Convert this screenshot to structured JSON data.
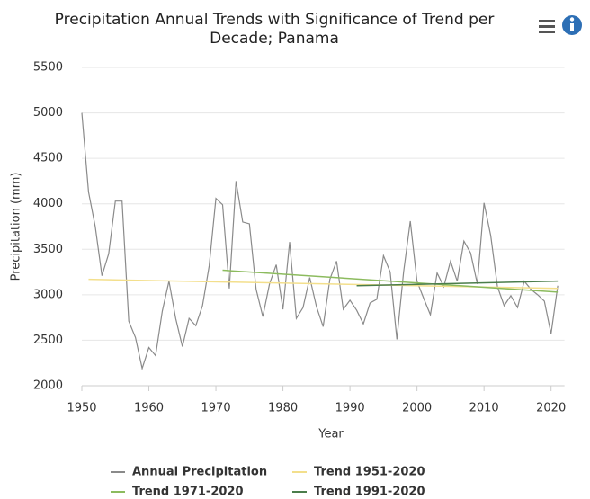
{
  "chart_data": {
    "type": "line",
    "title": "Precipitation Annual Trends with Significance of Trend per",
    "subtitle": "Decade; Panama",
    "xlabel": "Year",
    "ylabel": "Precipitation (mm)",
    "xlim": [
      1950,
      2022
    ],
    "ylim": [
      2000,
      5500
    ],
    "xticks": [
      1950,
      1960,
      1970,
      1980,
      1990,
      2000,
      2010,
      2020
    ],
    "yticks": [
      2000,
      2500,
      3000,
      3500,
      4000,
      4500,
      5000,
      5500
    ],
    "grid": true,
    "legend": "bottom",
    "series": [
      {
        "name": "Annual Precipitation",
        "color": "#8a8a8a",
        "x": [
          1950,
          1951,
          1952,
          1953,
          1954,
          1955,
          1956,
          1957,
          1958,
          1959,
          1960,
          1961,
          1962,
          1963,
          1964,
          1965,
          1966,
          1967,
          1968,
          1969,
          1970,
          1971,
          1972,
          1973,
          1974,
          1975,
          1976,
          1977,
          1978,
          1979,
          1980,
          1981,
          1982,
          1983,
          1984,
          1985,
          1986,
          1987,
          1988,
          1989,
          1990,
          1991,
          1992,
          1993,
          1994,
          1995,
          1996,
          1997,
          1998,
          1999,
          2000,
          2001,
          2002,
          2003,
          2004,
          2005,
          2006,
          2007,
          2008,
          2009,
          2010,
          2011,
          2012,
          2013,
          2014,
          2015,
          2016,
          2017,
          2018,
          2019,
          2020,
          2021
        ],
        "values": [
          5000,
          4130,
          3750,
          3210,
          3450,
          4030,
          4030,
          2710,
          2530,
          2190,
          2420,
          2330,
          2820,
          3150,
          2740,
          2430,
          2740,
          2660,
          2880,
          3320,
          4060,
          3990,
          3070,
          4250,
          3800,
          3780,
          3060,
          2760,
          3120,
          3330,
          2840,
          3580,
          2740,
          2860,
          3190,
          2870,
          2650,
          3170,
          3370,
          2840,
          2940,
          2830,
          2680,
          2910,
          2950,
          3430,
          3250,
          2510,
          3250,
          3810,
          3150,
          2960,
          2780,
          3240,
          3090,
          3370,
          3150,
          3590,
          3460,
          3120,
          4010,
          3650,
          3090,
          2880,
          2990,
          2860,
          3150,
          3060,
          3000,
          2930,
          2570,
          3100
        ]
      },
      {
        "name": "Trend 1951-2020",
        "color": "#f3df8c",
        "x": [
          1951,
          2021
        ],
        "values": [
          3170,
          3070
        ]
      },
      {
        "name": "Trend 1971-2020",
        "color": "#8cbb5e",
        "x": [
          1971,
          2021
        ],
        "values": [
          3270,
          3030
        ]
      },
      {
        "name": "Trend 1991-2020",
        "color": "#4b7d4b",
        "x": [
          1991,
          2021
        ],
        "values": [
          3100,
          3150
        ]
      }
    ]
  }
}
